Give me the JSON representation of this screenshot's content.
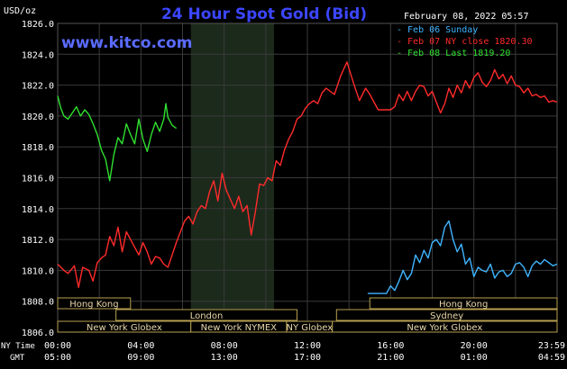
{
  "colors": {
    "background": "#000000",
    "grid": "#3a3a3a",
    "axis_text": "#ffffff",
    "title": "#3b46ff",
    "watermark": "#5a6bff",
    "session_shade": "#1c2a1c",
    "market_border": "#b8a050",
    "market_text": "#e8d7a8",
    "sunday": "#3fb4ff",
    "ny_close": "#ff2b2b",
    "last": "#2fe02f"
  },
  "header": {
    "unit_label": "USD/oz",
    "title": "24 Hour Spot Gold (Bid)",
    "watermark": "www.kitco.com",
    "timestamp": "February 08, 2022 05:57"
  },
  "legend": [
    {
      "label": "- Feb 06 Sunday",
      "color": "#3fb4ff"
    },
    {
      "label": "- Feb 07 NY close 1820.30",
      "color": "#ff2b2b"
    },
    {
      "label": "- Feb 08 Last 1819.20",
      "color": "#2fe02f"
    }
  ],
  "axis_rows": {
    "ny_label": "NY Time",
    "gmt_label": "GMT",
    "ny_times": [
      "00:00",
      "04:00",
      "08:00",
      "12:00",
      "16:00",
      "20:00",
      "23:59"
    ],
    "gmt_times": [
      "05:00",
      "09:00",
      "13:00",
      "17:00",
      "21:00",
      "01:00",
      "04:59"
    ]
  },
  "markets": [
    {
      "label": "Hong Kong",
      "start": 0,
      "end": 3.5,
      "row": 0
    },
    {
      "label": "Hong Kong",
      "start": 15.0,
      "end": 24.0,
      "row": 0
    },
    {
      "label": "London",
      "start": 2.8,
      "end": 11.5,
      "row": 1
    },
    {
      "label": "Sydney",
      "start": 13.4,
      "end": 24.0,
      "row": 1
    },
    {
      "label": "New York Globex",
      "start": 0,
      "end": 6.4,
      "row": 2
    },
    {
      "label": "New York NYMEX",
      "start": 6.4,
      "end": 11.0,
      "row": 2
    },
    {
      "label": "NY Globex",
      "start": 11.0,
      "end": 13.2,
      "row": 2
    },
    {
      "label": "New York Globex",
      "start": 13.2,
      "end": 24.0,
      "row": 2
    }
  ],
  "chart_data": {
    "type": "line",
    "title": "24 Hour Spot Gold (Bid)",
    "ylabel": "USD/oz",
    "ylim": [
      1806.0,
      1826.0
    ],
    "y_ticks": [
      "1806.0",
      "1808.0",
      "1810.0",
      "1812.0",
      "1814.0",
      "1816.0",
      "1818.0",
      "1820.0",
      "1822.0",
      "1824.0",
      "1826.0"
    ],
    "xlim": [
      0,
      24
    ],
    "x_unit": "hours (NY time)",
    "session_shade": [
      6.4,
      10.4
    ],
    "grid": true,
    "series": [
      {
        "name": "Feb 08 Last 1819.20",
        "color": "#2fe02f",
        "x": [
          0.0,
          0.15,
          0.3,
          0.5,
          0.7,
          0.9,
          1.1,
          1.3,
          1.5,
          1.7,
          1.9,
          2.1,
          2.3,
          2.5,
          2.7,
          2.9,
          3.1,
          3.3,
          3.5,
          3.7,
          3.9,
          4.1,
          4.3,
          4.5,
          4.7,
          4.9,
          5.1,
          5.2,
          5.3,
          5.5,
          5.7
        ],
        "values": [
          1821.3,
          1820.5,
          1820.0,
          1819.8,
          1820.2,
          1820.6,
          1820.0,
          1820.4,
          1820.1,
          1819.5,
          1818.8,
          1817.8,
          1817.2,
          1815.8,
          1817.5,
          1818.6,
          1818.2,
          1819.5,
          1818.8,
          1818.2,
          1819.8,
          1818.5,
          1817.7,
          1818.8,
          1819.6,
          1819.0,
          1819.8,
          1820.8,
          1819.9,
          1819.4,
          1819.2
        ]
      },
      {
        "name": "Feb 07 NY close 1820.30",
        "color": "#ff2b2b",
        "x": [
          0.0,
          0.3,
          0.5,
          0.8,
          1.0,
          1.2,
          1.5,
          1.7,
          1.9,
          2.1,
          2.3,
          2.5,
          2.7,
          2.9,
          3.1,
          3.3,
          3.5,
          3.7,
          3.9,
          4.1,
          4.3,
          4.5,
          4.7,
          4.9,
          5.1,
          5.3,
          5.5,
          5.7,
          5.9,
          6.1,
          6.3,
          6.5,
          6.7,
          6.9,
          7.1,
          7.3,
          7.5,
          7.7,
          7.9,
          8.1,
          8.3,
          8.5,
          8.7,
          8.9,
          9.1,
          9.3,
          9.5,
          9.7,
          9.9,
          10.1,
          10.3,
          10.5,
          10.7,
          10.9,
          11.1,
          11.3,
          11.5,
          11.7,
          11.9,
          12.1,
          12.3,
          12.5,
          12.7,
          12.9,
          13.1,
          13.3,
          13.6,
          13.9,
          14.2,
          14.5,
          14.8,
          15.0,
          15.2,
          15.4,
          15.6,
          15.8,
          16.0,
          16.2,
          16.4,
          16.6,
          16.8,
          17.0,
          17.2,
          17.4,
          17.6,
          17.8,
          18.0,
          18.2,
          18.4,
          18.6,
          18.8,
          19.0,
          19.2,
          19.4,
          19.6,
          19.8,
          20.0,
          20.2,
          20.4,
          20.6,
          20.8,
          21.0,
          21.2,
          21.4,
          21.6,
          21.8,
          22.0,
          22.2,
          22.4,
          22.6,
          22.8,
          23.0,
          23.2,
          23.4,
          23.6,
          23.8,
          23.99
        ],
        "values": [
          1810.4,
          1810.0,
          1809.8,
          1810.3,
          1808.9,
          1810.2,
          1810.0,
          1809.3,
          1810.5,
          1810.8,
          1811.0,
          1812.2,
          1811.6,
          1812.8,
          1811.2,
          1812.5,
          1812.0,
          1811.5,
          1811.0,
          1811.8,
          1811.2,
          1810.4,
          1810.9,
          1810.8,
          1810.4,
          1810.2,
          1811.0,
          1811.8,
          1812.5,
          1813.2,
          1813.5,
          1813.0,
          1813.8,
          1814.2,
          1814.0,
          1815.1,
          1815.8,
          1814.5,
          1816.3,
          1815.2,
          1814.6,
          1814.0,
          1814.8,
          1813.8,
          1814.2,
          1812.3,
          1813.8,
          1815.6,
          1815.5,
          1816.0,
          1815.8,
          1817.1,
          1816.8,
          1817.8,
          1818.5,
          1819.0,
          1819.8,
          1820.0,
          1820.5,
          1820.8,
          1821.0,
          1820.8,
          1821.5,
          1821.8,
          1821.6,
          1821.4,
          1822.6,
          1823.5,
          1822.2,
          1821.0,
          1821.8,
          1821.4,
          1820.9,
          1820.4,
          1820.4,
          1820.4,
          1820.4,
          1820.6,
          1821.4,
          1821.0,
          1821.6,
          1821.0,
          1821.6,
          1822.0,
          1821.9,
          1821.3,
          1821.6,
          1820.9,
          1820.2,
          1820.8,
          1821.8,
          1821.2,
          1822.0,
          1821.5,
          1822.3,
          1821.8,
          1822.5,
          1822.8,
          1822.2,
          1821.9,
          1822.3,
          1823.0,
          1822.4,
          1822.7,
          1822.1,
          1822.6,
          1822.0,
          1821.9,
          1821.5,
          1821.8,
          1821.3,
          1821.4,
          1821.2,
          1821.3,
          1820.9,
          1821.0,
          1820.9
        ]
      },
      {
        "name": "Feb 06 Sunday",
        "color": "#3fb4ff",
        "x": [
          14.9,
          15.4,
          15.8,
          16.0,
          16.2,
          16.4,
          16.6,
          16.8,
          17.0,
          17.2,
          17.4,
          17.6,
          17.8,
          18.0,
          18.2,
          18.4,
          18.6,
          18.8,
          19.0,
          19.2,
          19.4,
          19.6,
          19.8,
          20.0,
          20.2,
          20.4,
          20.6,
          20.8,
          21.0,
          21.2,
          21.4,
          21.6,
          21.8,
          22.0,
          22.2,
          22.4,
          22.6,
          22.8,
          23.0,
          23.2,
          23.4,
          23.6,
          23.8,
          23.99
        ],
        "values": [
          1808.5,
          1808.5,
          1808.5,
          1809.0,
          1808.7,
          1809.3,
          1810.0,
          1809.4,
          1809.8,
          1811.0,
          1810.5,
          1811.3,
          1810.8,
          1811.8,
          1812.0,
          1811.6,
          1812.8,
          1813.2,
          1812.0,
          1811.2,
          1811.7,
          1810.4,
          1810.8,
          1809.6,
          1810.2,
          1810.0,
          1809.9,
          1810.4,
          1809.5,
          1809.9,
          1810.0,
          1809.6,
          1809.8,
          1810.4,
          1810.5,
          1810.2,
          1809.6,
          1810.3,
          1810.6,
          1810.4,
          1810.7,
          1810.5,
          1810.3,
          1810.4
        ]
      }
    ]
  }
}
